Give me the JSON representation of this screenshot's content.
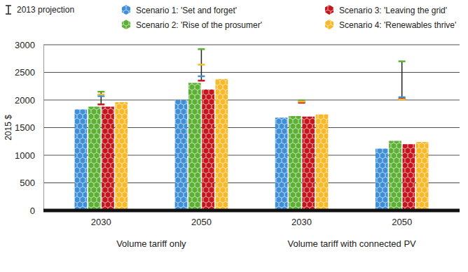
{
  "chart_data": {
    "type": "bar",
    "y_label": "2015 $",
    "categories": [
      "2030",
      "2050",
      "2030",
      "2050"
    ],
    "groups": [
      "Volume tariff only",
      "Volume tariff with connected PV"
    ],
    "error_legend": "2013 projection",
    "series": [
      {
        "name": "Scenario 1: 'Set and forget'",
        "color": "#3f8fd8",
        "values": [
          1830,
          2000,
          1680,
          1120
        ],
        "projection_2013": [
          2070,
          2430,
          1960,
          2050
        ]
      },
      {
        "name": "Scenario 2: 'Rise of the prosumer'",
        "color": "#5cb135",
        "values": [
          1880,
          2310,
          1710,
          1260
        ],
        "projection_2013": [
          2150,
          2920,
          1990,
          2700
        ]
      },
      {
        "name": "Scenario 3: 'Leaving the grid'",
        "color": "#c4161c",
        "values": [
          1880,
          2190,
          1700,
          1200
        ],
        "projection_2013": [
          1920,
          2350,
          1950,
          2020
        ]
      },
      {
        "name": "Scenario 4: 'Renewables thrive'",
        "color": "#f7b928",
        "values": [
          1960,
          2380,
          1740,
          1240
        ],
        "projection_2013": [
          2100,
          2640,
          1970,
          2010
        ]
      }
    ],
    "ylim": [
      0,
      3000
    ],
    "yticks": [
      0,
      500,
      1000,
      1500,
      2000,
      2500,
      3000
    ],
    "grid": true,
    "legend": "top"
  }
}
